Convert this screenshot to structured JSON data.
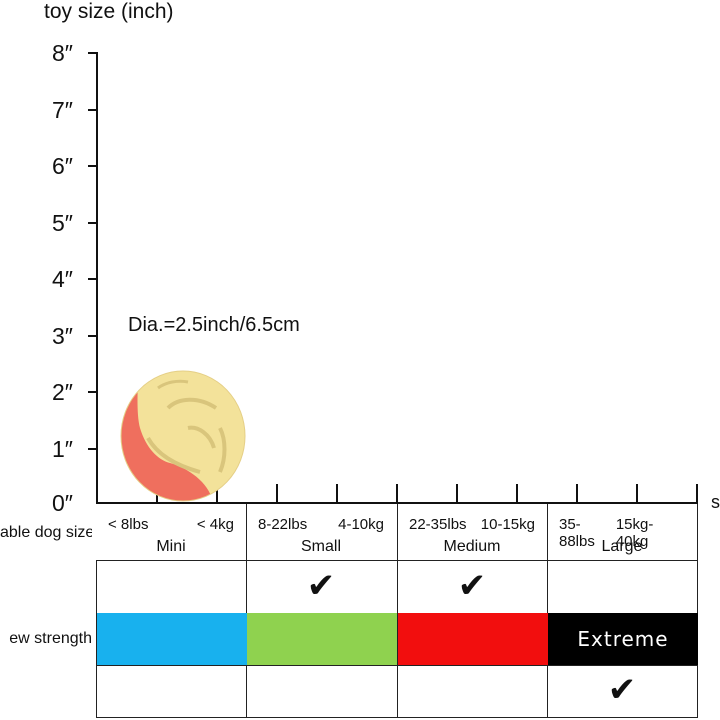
{
  "axis": {
    "title": "toy size (inch)",
    "ticks": [
      "8″",
      "7″",
      "6″",
      "5″",
      "4″",
      "3″",
      "2″",
      "1″",
      "0″"
    ],
    "x_cut_label": "s"
  },
  "toy": {
    "diameter_label": "Dia.=2.5inch/6.5cm",
    "colors": {
      "yellow": "#f3e29a",
      "red": "#ef6f5e"
    }
  },
  "table": {
    "row_labels": {
      "dog_size": "able dog size",
      "chew_strength": "ew strength"
    },
    "sizes": [
      {
        "lbs": "< 8lbs",
        "kg": "< 4kg",
        "name": "Mini",
        "suitable": false
      },
      {
        "lbs": "8-22lbs",
        "kg": "4-10kg",
        "name": "Small",
        "suitable": true
      },
      {
        "lbs": "22-35lbs",
        "kg": "10-15kg",
        "name": "Medium",
        "suitable": true
      },
      {
        "lbs": "35-88lbs",
        "kg": "15kg-40kg",
        "name": "Large",
        "suitable": false
      }
    ],
    "strengths": [
      {
        "label": "",
        "color": "#18b1ee",
        "selected": false
      },
      {
        "label": "",
        "color": "#8fd24f",
        "selected": false
      },
      {
        "label": "",
        "color": "#f20e0e",
        "selected": false
      },
      {
        "label": "Extreme",
        "color": "#000000",
        "selected": true
      }
    ],
    "check_glyph": "✔"
  }
}
